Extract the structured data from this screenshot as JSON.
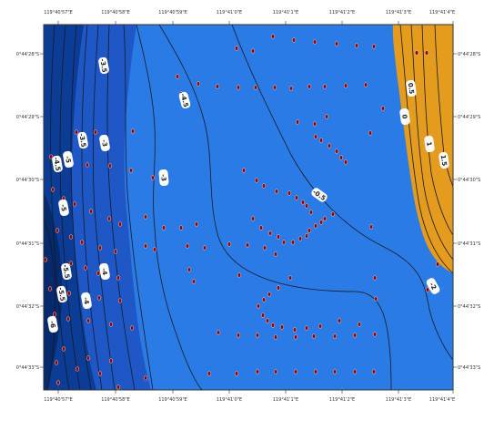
{
  "axes": {
    "longitude_ticks": [
      "119°40'57\"E",
      "119°40'58\"E",
      "119°40'59\"E",
      "119°41'0\"E",
      "119°41'1\"E",
      "119°41'2\"E",
      "119°41'3\"E",
      "119°41'4\"E"
    ],
    "latitude_ticks": [
      "0°44'28\"S",
      "0°44'29\"S",
      "0°44'30\"S",
      "0°44'31\"S",
      "0°44'32\"S",
      "0°44'33\"S"
    ]
  },
  "contour_labels": [
    "-3.5",
    "-4.5",
    "-3.5",
    "-3",
    "-4.5",
    "-5",
    "-3",
    "-5",
    "-4",
    "-5.5",
    "-5.5",
    "-6",
    "-4",
    "-0.5",
    "0.5",
    "0",
    "1",
    "1.5",
    "-2",
    "-0.5"
  ],
  "colors": {
    "deep_water": "#062a6e",
    "mid_water": "#1f58c6",
    "shallow_water": "#2b7be6",
    "land": "#e49b1e",
    "contour_line": "#141a26",
    "sample_point": "#7a0a0a",
    "frame": "#333333"
  }
}
